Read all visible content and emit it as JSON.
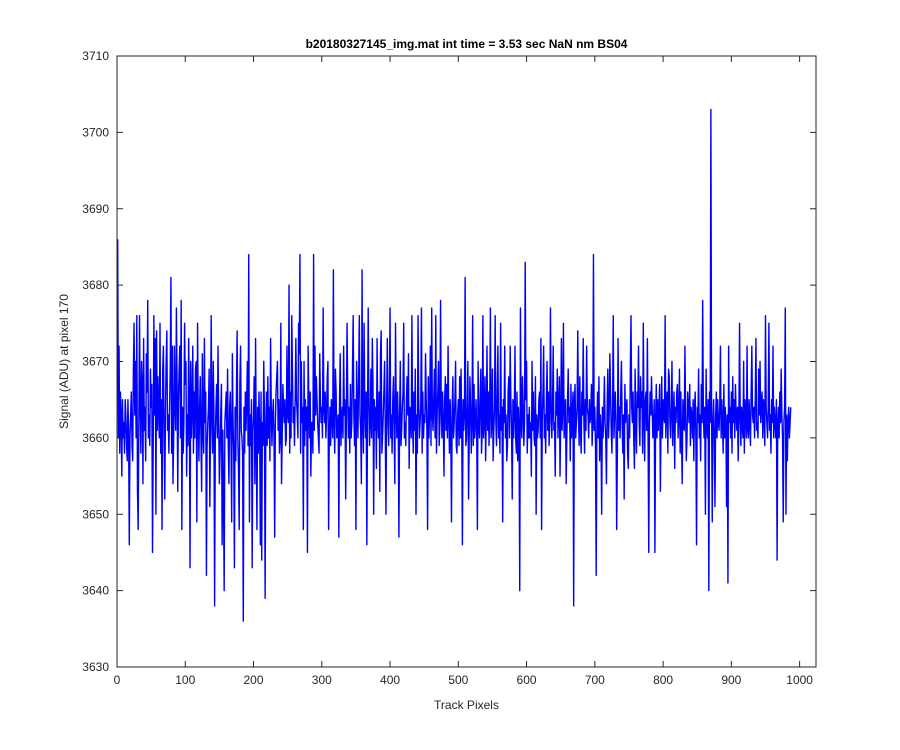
{
  "chart_data": {
    "type": "line",
    "title": "b20180327145_img.mat int time = 3.53 sec  NaN nm BS04",
    "xlabel": "Track Pixels",
    "ylabel": "Signal (ADU) at pixel 170",
    "xlim": [
      0,
      1024
    ],
    "ylim": [
      3630,
      3710
    ],
    "xticks": [
      0,
      100,
      200,
      300,
      400,
      500,
      600,
      700,
      800,
      900,
      1000
    ],
    "yticks": [
      3630,
      3640,
      3650,
      3660,
      3670,
      3680,
      3690,
      3700,
      3710
    ],
    "grid": false,
    "legend": "none",
    "series": [
      {
        "color": "#0000ff",
        "x_start": 1,
        "x_step": 1,
        "y": [
          3686,
          3660,
          3672,
          3658,
          3666,
          3663,
          3655,
          3665,
          3660,
          3662,
          3658,
          3665,
          3663,
          3659,
          3657,
          3665,
          3661,
          3646,
          3660,
          3663,
          3666,
          3659,
          3657,
          3669,
          3675,
          3663,
          3670,
          3660,
          3676,
          3653,
          3648,
          3662,
          3676,
          3664,
          3658,
          3670,
          3667,
          3654,
          3673,
          3661,
          3664,
          3657,
          3671,
          3666,
          3678,
          3660,
          3663,
          3659,
          3669,
          3664,
          3667,
          3645,
          3658,
          3676,
          3663,
          3673,
          3650,
          3674,
          3661,
          3668,
          3663,
          3660,
          3675,
          3658,
          3665,
          3648,
          3669,
          3672,
          3660,
          3652,
          3664,
          3670,
          3674,
          3661,
          3663,
          3658,
          3664,
          3669,
          3681,
          3658,
          3672,
          3654,
          3660,
          3672,
          3664,
          3661,
          3677,
          3667,
          3653,
          3665,
          3669,
          3672,
          3660,
          3678,
          3648,
          3664,
          3658,
          3662,
          3675,
          3667,
          3670,
          3655,
          3663,
          3659,
          3673,
          3665,
          3643,
          3670,
          3660,
          3664,
          3672,
          3658,
          3666,
          3660,
          3669,
          3670,
          3649,
          3675,
          3663,
          3657,
          3664,
          3668,
          3660,
          3653,
          3671,
          3661,
          3658,
          3673,
          3662,
          3666,
          3642,
          3659,
          3662,
          3664,
          3669,
          3651,
          3662,
          3676,
          3662,
          3658,
          3670,
          3663,
          3638,
          3660,
          3664,
          3667,
          3660,
          3672,
          3662,
          3654,
          3658,
          3663,
          3667,
          3646,
          3661,
          3653,
          3640,
          3662,
          3664,
          3666,
          3660,
          3669,
          3659,
          3654,
          3664,
          3666,
          3660,
          3649,
          3671,
          3662,
          3658,
          3643,
          3664,
          3657,
          3666,
          3674,
          3660,
          3656,
          3648,
          3667,
          3672,
          3661,
          3660,
          3658,
          3636,
          3664,
          3658,
          3666,
          3661,
          3665,
          3670,
          3659,
          3684,
          3649,
          3663,
          3659,
          3665,
          3643,
          3661,
          3663,
          3668,
          3654,
          3673,
          3660,
          3648,
          3664,
          3658,
          3666,
          3661,
          3646,
          3666,
          3644,
          3662,
          3659,
          3670,
          3663,
          3639,
          3661,
          3666,
          3659,
          3668,
          3660,
          3664,
          3657,
          3673,
          3664,
          3659,
          3663,
          3665,
          3660,
          3647,
          3662,
          3666,
          3668,
          3670,
          3661,
          3665,
          3658,
          3660,
          3675,
          3654,
          3660,
          3667,
          3664,
          3662,
          3665,
          3659,
          3660,
          3672,
          3663,
          3662,
          3680,
          3658,
          3666,
          3660,
          3676,
          3669,
          3662,
          3664,
          3659,
          3665,
          3673,
          3665,
          3663,
          3660,
          3675,
          3671,
          3684,
          3658,
          3670,
          3662,
          3664,
          3648,
          3670,
          3659,
          3665,
          3661,
          3664,
          3645,
          3672,
          3665,
          3660,
          3666,
          3655,
          3662,
          3662,
          3658,
          3684,
          3661,
          3672,
          3663,
          3668,
          3665,
          3662,
          3660,
          3658,
          3671,
          3665,
          3662,
          3664,
          3660,
          3677,
          3664,
          3662,
          3666,
          3660,
          3663,
          3668,
          3670,
          3648,
          3660,
          3664,
          3659,
          3665,
          3663,
          3660,
          3682,
          3662,
          3658,
          3669,
          3666,
          3660,
          3661,
          3663,
          3647,
          3665,
          3671,
          3659,
          3662,
          3664,
          3660,
          3672,
          3663,
          3665,
          3652,
          3662,
          3675,
          3666,
          3660,
          3664,
          3658,
          3667,
          3660,
          3662,
          3669,
          3676,
          3663,
          3659,
          3665,
          3648,
          3670,
          3664,
          3660,
          3668,
          3676,
          3663,
          3661,
          3654,
          3682,
          3662,
          3658,
          3675,
          3664,
          3660,
          3666,
          3646,
          3663,
          3677,
          3665,
          3659,
          3662,
          3669,
          3660,
          3673,
          3667,
          3650,
          3665,
          3661,
          3664,
          3656,
          3673,
          3662,
          3660,
          3666,
          3653,
          3671,
          3674,
          3658,
          3660,
          3663,
          3666,
          3670,
          3661,
          3650,
          3664,
          3673,
          3662,
          3659,
          3665,
          3677,
          3660,
          3663,
          3658,
          3665,
          3668,
          3661,
          3654,
          3675,
          3664,
          3660,
          3666,
          3662,
          3647,
          3663,
          3670,
          3659,
          3661,
          3664,
          3666,
          3675,
          3660,
          3662,
          3659,
          3665,
          3668,
          3663,
          3671,
          3656,
          3664,
          3663,
          3660,
          3676,
          3662,
          3658,
          3666,
          3661,
          3669,
          3650,
          3663,
          3658,
          3676,
          3665,
          3660,
          3662,
          3664,
          3677,
          3658,
          3666,
          3660,
          3663,
          3662,
          3671,
          3665,
          3661,
          3648,
          3668,
          3660,
          3664,
          3672,
          3659,
          3677,
          3663,
          3661,
          3665,
          3669,
          3660,
          3676,
          3658,
          3663,
          3666,
          3670,
          3659,
          3662,
          3678,
          3664,
          3660,
          3666,
          3662,
          3655,
          3665,
          3668,
          3661,
          3667,
          3660,
          3672,
          3663,
          3658,
          3665,
          3661,
          3649,
          3664,
          3668,
          3660,
          3662,
          3665,
          3670,
          3659,
          3658,
          3663,
          3665,
          3659,
          3668,
          3660,
          3669,
          3662,
          3646,
          3665,
          3661,
          3663,
          3681,
          3659,
          3660,
          3664,
          3670,
          3652,
          3660,
          3668,
          3664,
          3658,
          3662,
          3676,
          3659,
          3667,
          3660,
          3662,
          3665,
          3660,
          3648,
          3670,
          3662,
          3660,
          3665,
          3669,
          3658,
          3661,
          3676,
          3660,
          3662,
          3668,
          3657,
          3663,
          3672,
          3661,
          3666,
          3659,
          3664,
          3677,
          3660,
          3662,
          3669,
          3657,
          3661,
          3664,
          3676,
          3662,
          3659,
          3666,
          3672,
          3660,
          3663,
          3658,
          3675,
          3661,
          3664,
          3649,
          3665,
          3662,
          3672,
          3660,
          3663,
          3657,
          3659,
          3666,
          3668,
          3660,
          3672,
          3665,
          3661,
          3652,
          3665,
          3660,
          3663,
          3672,
          3660,
          3658,
          3666,
          3657,
          3664,
          3661,
          3640,
          3677,
          3663,
          3660,
          3668,
          3664,
          3659,
          3662,
          3683,
          3665,
          3670,
          3658,
          3663,
          3660,
          3664,
          3660,
          3662,
          3655,
          3670,
          3661,
          3666,
          3660,
          3659,
          3668,
          3650,
          3663,
          3660,
          3661,
          3665,
          3666,
          3660,
          3673,
          3648,
          3662,
          3666,
          3672,
          3660,
          3663,
          3658,
          3665,
          3670,
          3661,
          3666,
          3659,
          3662,
          3677,
          3664,
          3660,
          3664,
          3672,
          3661,
          3662,
          3655,
          3666,
          3663,
          3669,
          3660,
          3664,
          3668,
          3655,
          3662,
          3673,
          3661,
          3664,
          3675,
          3660,
          3663,
          3665,
          3654,
          3660,
          3665,
          3669,
          3662,
          3664,
          3657,
          3667,
          3660,
          3663,
          3666,
          3638,
          3665,
          3667,
          3660,
          3662,
          3664,
          3674,
          3663,
          3659,
          3668,
          3661,
          3658,
          3666,
          3663,
          3673,
          3662,
          3658,
          3665,
          3661,
          3672,
          3664,
          3663,
          3660,
          3665,
          3662,
          3663,
          3667,
          3659,
          3662,
          3684,
          3661,
          3664,
          3659,
          3642,
          3662,
          3666,
          3660,
          3668,
          3657,
          3663,
          3661,
          3650,
          3664,
          3660,
          3663,
          3668,
          3662,
          3660,
          3654,
          3664,
          3669,
          3660,
          3663,
          3671,
          3666,
          3661,
          3658,
          3664,
          3676,
          3660,
          3663,
          3666,
          3662,
          3648,
          3658,
          3673,
          3661,
          3664,
          3660,
          3666,
          3670,
          3662,
          3658,
          3663,
          3652,
          3667,
          3662,
          3664,
          3665,
          3658,
          3656,
          3663,
          3660,
          3669,
          3676,
          3664,
          3662,
          3666,
          3660,
          3656,
          3669,
          3662,
          3658,
          3666,
          3664,
          3672,
          3662,
          3659,
          3668,
          3664,
          3666,
          3658,
          3675,
          3663,
          3657,
          3665,
          3666,
          3661,
          3673,
          3660,
          3645,
          3662,
          3666,
          3663,
          3668,
          3664,
          3660,
          3662,
          3665,
          3645,
          3662,
          3667,
          3660,
          3665,
          3661,
          3664,
          3667,
          3653,
          3662,
          3668,
          3660,
          3665,
          3663,
          3662,
          3676,
          3660,
          3664,
          3666,
          3658,
          3669,
          3668,
          3662,
          3660,
          3664,
          3670,
          3659,
          3663,
          3666,
          3656,
          3664,
          3662,
          3666,
          3667,
          3660,
          3663,
          3669,
          3658,
          3666,
          3660,
          3654,
          3665,
          3662,
          3661,
          3672,
          3663,
          3657,
          3660,
          3666,
          3664,
          3662,
          3667,
          3659,
          3664,
          3663,
          3660,
          3665,
          3657,
          3664,
          3666,
          3660,
          3646,
          3664,
          3662,
          3669,
          3660,
          3663,
          3657,
          3667,
          3662,
          3678,
          3663,
          3660,
          3664,
          3650,
          3669,
          3662,
          3660,
          3665,
          3640,
          3666,
          3662,
          3703,
          3664,
          3649,
          3662,
          3665,
          3660,
          3651,
          3663,
          3666,
          3660,
          3665,
          3662,
          3661,
          3664,
          3672,
          3660,
          3665,
          3662,
          3658,
          3667,
          3660,
          3664,
          3662,
          3651,
          3663,
          3641,
          3672,
          3662,
          3664,
          3660,
          3666,
          3658,
          3668,
          3662,
          3665,
          3660,
          3667,
          3663,
          3661,
          3664,
          3657,
          3662,
          3675,
          3663,
          3659,
          3664,
          3662,
          3660,
          3670,
          3658,
          3665,
          3663,
          3660,
          3672,
          3661,
          3660,
          3665,
          3662,
          3659,
          3666,
          3672,
          3663,
          3662,
          3664,
          3660,
          3665,
          3673,
          3661,
          3662,
          3660,
          3669,
          3663,
          3670,
          3662,
          3664,
          3666,
          3660,
          3665,
          3663,
          3659,
          3676,
          3664,
          3662,
          3660,
          3664,
          3675,
          3661,
          3663,
          3658,
          3665,
          3662,
          3672,
          3660,
          3664,
          3662,
          3660,
          3665,
          3644,
          3662,
          3664,
          3660,
          3666,
          3662,
          3669,
          3663,
          3660,
          3649,
          3662,
          3664,
          3677,
          3650,
          3663,
          3657,
          3662,
          3664,
          3660,
          3662,
          3664
        ]
      }
    ]
  }
}
